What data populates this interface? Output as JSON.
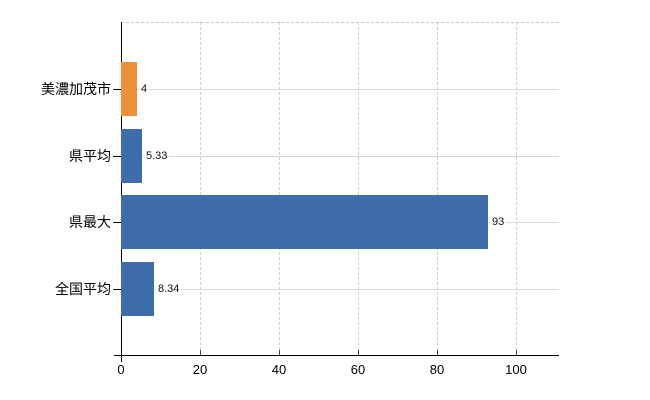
{
  "chart_data": {
    "type": "bar",
    "orientation": "horizontal",
    "title": "",
    "xlabel": "",
    "ylabel": "",
    "categories": [
      "美濃加茂市",
      "県平均",
      "県最大",
      "全国平均"
    ],
    "values": [
      4,
      5.33,
      93,
      8.34
    ],
    "value_labels": [
      "4",
      "5.33",
      "93",
      "8.34"
    ],
    "bar_colors": [
      "#ec9138",
      "#3e6dab",
      "#3e6dab",
      "#3e6dab"
    ],
    "highlight_color": "#ec9138",
    "base_color": "#3e6dab",
    "xlim": [
      0,
      111
    ],
    "x_ticks": [
      0,
      20,
      40,
      60,
      80,
      100
    ],
    "x_tick_labels": [
      "0",
      "20",
      "40",
      "60",
      "80",
      "100"
    ],
    "grid": true,
    "legend": false,
    "background_color": "#ffffff"
  }
}
